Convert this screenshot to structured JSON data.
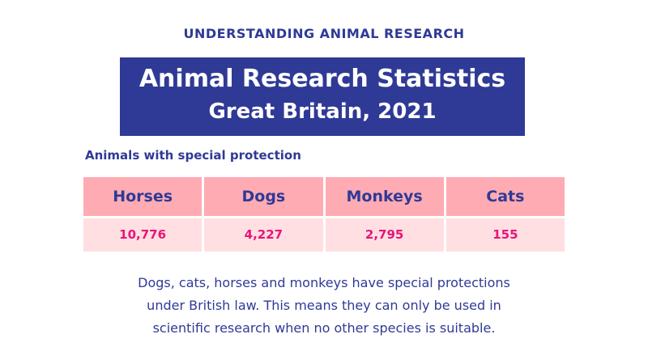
{
  "kicker": "UNDERSTANDING ANIMAL RESEARCH",
  "title": {
    "line1": "Animal Research Statistics",
    "line2": "Great Britain, 2021"
  },
  "subtitle": "Animals with special protection",
  "table": {
    "headers": [
      "Horses",
      "Dogs",
      "Monkeys",
      "Cats"
    ],
    "values": [
      "10,776",
      "4,227",
      "2,795",
      "155"
    ]
  },
  "paragraph": {
    "lines": [
      "Dogs, cats, horses and monkeys have special protections",
      "under British law. This means they can only be used in",
      "scientific research when no other species is suitable."
    ]
  },
  "colors": {
    "navy": "#2f3a96",
    "header_pink": "#ffabb3",
    "value_pink": "#ffdfe1",
    "value_text": "#e8157a"
  }
}
